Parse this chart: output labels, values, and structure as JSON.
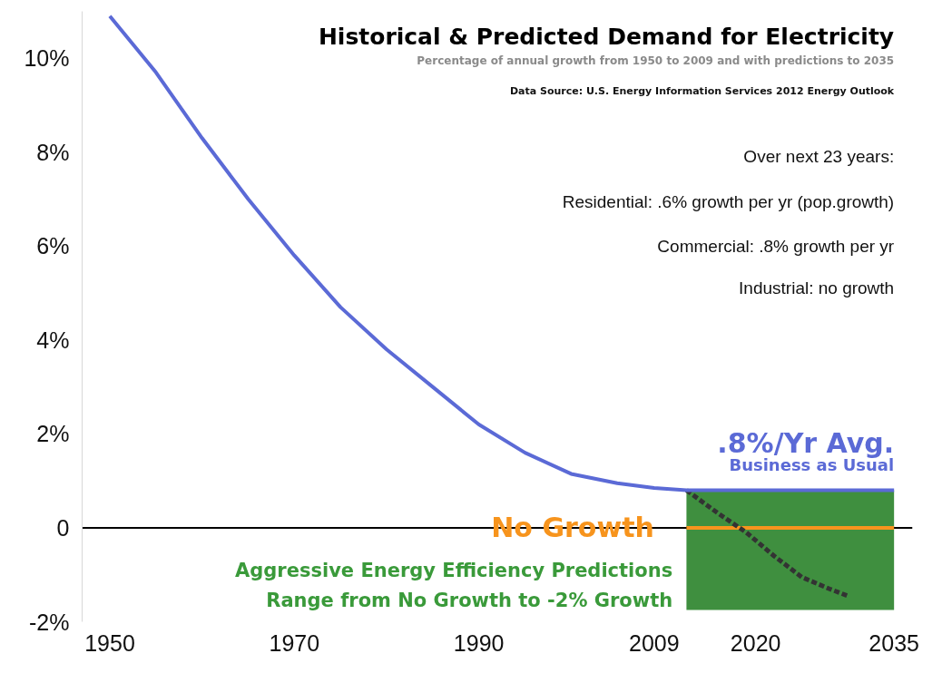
{
  "chart_data": {
    "type": "line",
    "title": "Historical & Predicted Demand for Electricity",
    "subtitle": "Percentage of annual growth from 1950 to 2009 and with predictions to 2035",
    "annotations": [
      "Data Source: U.S. Energy Information Services 2012 Energy Outlook",
      "Over next 23 years:",
      "Residential: .6% growth per yr (pop.growth)",
      "Commercial: .8% growth per yr",
      "Industrial: no growth",
      ".8%/Yr Avg.",
      "Business as Usual",
      "Aggressive Energy Efficiency Predictions",
      "Range from No Growth to -2% Growth",
      {
        "text": "No Growth",
        "x": 2009,
        "y": 0
      }
    ],
    "series": [
      {
        "color": "#f7941d",
        "x": [
          2012.5,
          2035
        ],
        "values": [
          0,
          0
        ]
      },
      {
        "color": "#333333",
        "line_style": "dashed",
        "x": [
          2012.5,
          2016,
          2019,
          2022,
          2025,
          2028,
          2030
        ],
        "values": [
          0.8,
          0.3,
          -0.1,
          -0.6,
          -1.05,
          -1.3,
          -1.45
        ]
      },
      {
        "color": "#5b6ad6",
        "x": [
          1950,
          1955,
          1960,
          1965,
          1970,
          1975,
          1980,
          1985,
          1990,
          1995,
          2000,
          2005,
          2009,
          2012.5,
          2035
        ],
        "values": [
          10.9,
          9.7,
          8.3,
          7.0,
          5.8,
          4.7,
          3.8,
          3.0,
          2.2,
          1.6,
          1.15,
          0.95,
          0.85,
          0.8,
          0.8
        ],
        "lower": [
          null,
          null,
          null,
          null,
          null,
          null,
          null,
          null,
          null,
          null,
          null,
          null,
          null,
          -1.75,
          -1.75
        ],
        "upper": [
          null,
          null,
          null,
          null,
          null,
          null,
          null,
          null,
          null,
          null,
          null,
          null,
          null,
          0.8,
          0.8
        ]
      }
    ],
    "ref_lines": [
      {
        "axis": "y",
        "value": 0,
        "color": "#000000"
      }
    ],
    "xlim": [
      1947,
      2037
    ],
    "ylim": [
      -2,
      11
    ],
    "xticks": [
      1950,
      1970,
      1990,
      2009,
      2020,
      2035
    ],
    "yticks": [
      {
        "value": -2,
        "label": "-2%"
      },
      0,
      {
        "value": 2,
        "label": "2%"
      },
      {
        "value": 4,
        "label": "4%"
      },
      {
        "value": 6,
        "label": "6%"
      },
      {
        "value": 8,
        "label": "8%"
      },
      {
        "value": 10,
        "label": "10%"
      }
    ],
    "grid": false
  }
}
